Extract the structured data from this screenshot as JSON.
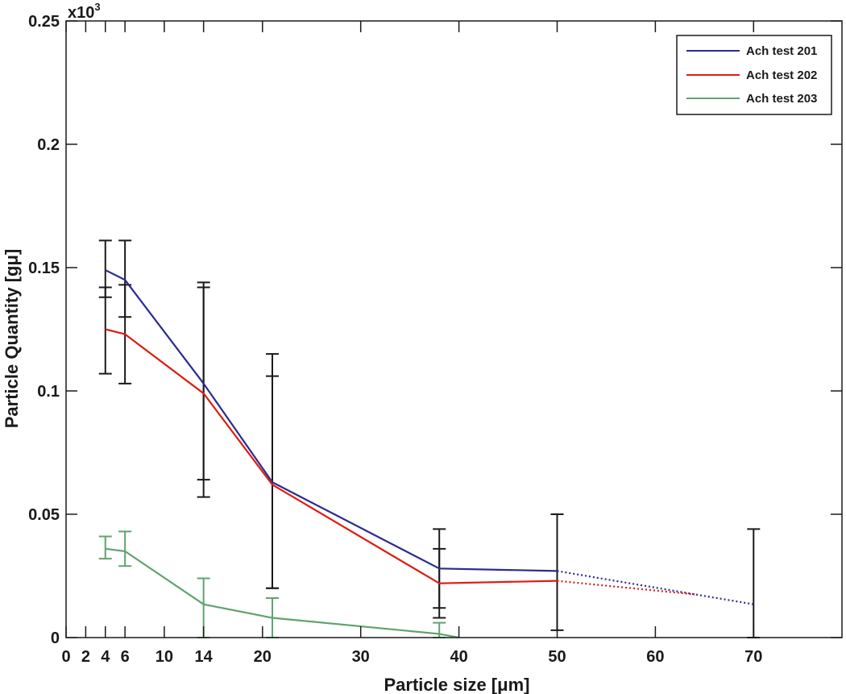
{
  "chart_data": {
    "type": "line",
    "title": "",
    "xlabel": "Particle size [μm]",
    "ylabel": "Particle Quantity [gμ]",
    "y_multiplier": "x10",
    "y_multiplier_exp": "3",
    "xlim": [
      0,
      79
    ],
    "ylim": [
      0,
      0.25
    ],
    "xticks": [
      0,
      2,
      4,
      6,
      10,
      14,
      20,
      30,
      40,
      50,
      60,
      70
    ],
    "xtick_labels": [
      "0",
      "2",
      "4",
      "6",
      "10",
      "14",
      "20",
      "30",
      "40",
      "50",
      "60",
      "70"
    ],
    "yticks": [
      0,
      0.05,
      0.1,
      0.15,
      0.2,
      0.25
    ],
    "ytick_labels": [
      "0",
      "0.05",
      "0.1",
      "0.15",
      "0.2",
      "0.25"
    ],
    "grid": false,
    "legend_position": "top-right",
    "series": [
      {
        "name": "Ach test 201",
        "color": "#2b2b8f",
        "x": [
          4,
          6,
          14,
          21,
          38,
          50
        ],
        "y": [
          0.149,
          0.145,
          0.103,
          0.063,
          0.028,
          0.027
        ],
        "dotted_extension": {
          "x": [
            50,
            70
          ],
          "y": [
            0.027,
            0.0135
          ]
        }
      },
      {
        "name": "Ach test 202",
        "color": "#e01b12",
        "x": [
          4,
          6,
          14,
          21,
          38,
          50
        ],
        "y": [
          0.125,
          0.123,
          0.099,
          0.062,
          0.022,
          0.023
        ],
        "dotted_extension": {
          "x": [
            50,
            64
          ],
          "y": [
            0.023,
            0.0175
          ]
        }
      },
      {
        "name": "Ach test 203",
        "color": "#5fa36f",
        "x": [
          4,
          6,
          14,
          21,
          38,
          40
        ],
        "y": [
          0.036,
          0.035,
          0.0135,
          0.008,
          0.0015,
          0
        ]
      }
    ],
    "error_bars": [
      {
        "x": 4,
        "low": 0.107,
        "high": 0.161,
        "color": "#1a1a1a"
      },
      {
        "x": 4,
        "low": 0.138,
        "high": 0.142,
        "color": "#1a1a1a"
      },
      {
        "x": 6,
        "low": 0.103,
        "high": 0.161,
        "color": "#1a1a1a"
      },
      {
        "x": 6,
        "low": 0.13,
        "high": 0.143,
        "color": "#1a1a1a"
      },
      {
        "x": 14,
        "low": 0.057,
        "high": 0.144,
        "color": "#1a1a1a"
      },
      {
        "x": 14,
        "low": 0.064,
        "high": 0.142,
        "color": "#1a1a1a"
      },
      {
        "x": 21,
        "low": 0.02,
        "high": 0.115,
        "color": "#1a1a1a"
      },
      {
        "x": 21,
        "low": 0.02,
        "high": 0.106,
        "color": "#1a1a1a"
      },
      {
        "x": 38,
        "low": 0.008,
        "high": 0.044,
        "color": "#1a1a1a"
      },
      {
        "x": 38,
        "low": 0.012,
        "high": 0.036,
        "color": "#1a1a1a"
      },
      {
        "x": 50,
        "low": 0.003,
        "high": 0.05,
        "color": "#1a1a1a"
      },
      {
        "x": 70,
        "low": 0.0,
        "high": 0.044,
        "color": "#1a1a1a"
      },
      {
        "x": 4,
        "low": 0.032,
        "high": 0.041,
        "color": "#5fa36f"
      },
      {
        "x": 6,
        "low": 0.029,
        "high": 0.043,
        "color": "#5fa36f"
      },
      {
        "x": 14,
        "low": 0.0,
        "high": 0.024,
        "color": "#5fa36f"
      },
      {
        "x": 21,
        "low": 0.0,
        "high": 0.016,
        "color": "#5fa36f"
      },
      {
        "x": 38,
        "low": 0.0,
        "high": 0.006,
        "color": "#5fa36f"
      }
    ]
  }
}
